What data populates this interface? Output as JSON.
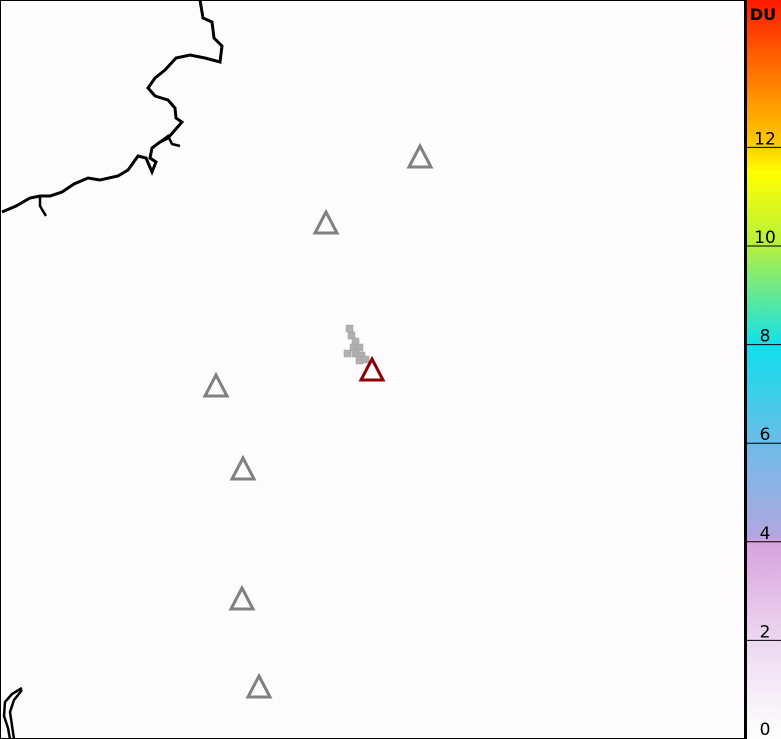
{
  "colorbar": {
    "unit": "DU",
    "min": 0,
    "max": 15,
    "ticks": [
      "0",
      "2",
      "4",
      "6",
      "8",
      "10",
      "12"
    ],
    "tick_values": [
      0,
      2,
      4,
      6,
      8,
      10,
      12
    ],
    "stops": [
      {
        "value": 0,
        "color": "#ffffff"
      },
      {
        "value": 2,
        "color": "#ecd8f0"
      },
      {
        "value": 4,
        "color": "#d8a2de"
      },
      {
        "value": 4.1,
        "color": "#b4a6e0"
      },
      {
        "value": 6,
        "color": "#6cbce8"
      },
      {
        "value": 8,
        "color": "#10e0ec"
      },
      {
        "value": 10,
        "color": "#b4f040"
      },
      {
        "value": 11.5,
        "color": "#ffff00"
      },
      {
        "value": 12,
        "color": "#ffd000"
      },
      {
        "value": 15,
        "color": "#ff1a00"
      }
    ]
  },
  "volcanoes": {
    "active_color": "#8b0000",
    "inactive_color": "#808080",
    "count_inactive": 6
  },
  "plume_color": "#b0b0b0"
}
